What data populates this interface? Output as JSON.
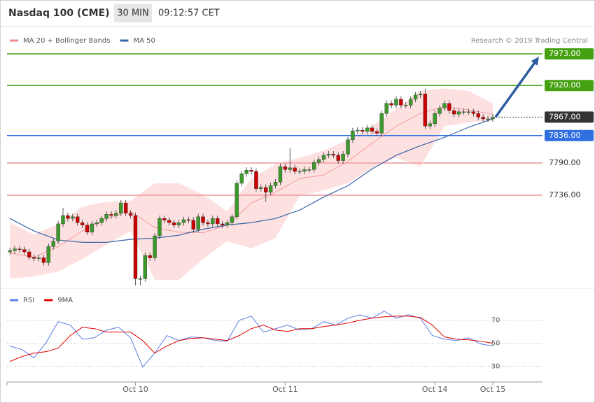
{
  "header": {
    "title": "Nasdaq 100 (CME)",
    "interval": "30 MIN",
    "time": "09:12:57 CET",
    "attribution": "Research © 2019 Trading Central"
  },
  "chart_data": [
    {
      "type": "candlestick",
      "xlim": [
        -0.6,
        110.3
      ],
      "ylim": [
        7580,
        7993
      ],
      "up_color": "#3c9a2a",
      "down_color": "#cc0000",
      "open": [
        7641,
        7643,
        7646,
        7645,
        7641,
        7632,
        7630,
        7631,
        7623,
        7650,
        7659,
        7688,
        7702,
        7697,
        7700,
        7690,
        7686,
        7674,
        7688,
        7690,
        7697,
        7704,
        7702,
        7706,
        7723,
        7706,
        7702,
        7596,
        7596,
        7635,
        7631,
        7668,
        7697,
        7694,
        7690,
        7686,
        7690,
        7695,
        7694,
        7679,
        7700,
        7690,
        7688,
        7697,
        7688,
        7686,
        7690,
        7700,
        7756,
        7772,
        7778,
        7776,
        7747,
        7749,
        7741,
        7752,
        7758,
        7784,
        7779,
        7782,
        7776,
        7776,
        7779,
        7779,
        7791,
        7796,
        7803,
        7805,
        7803,
        7794,
        7805,
        7829,
        7844,
        7845,
        7843,
        7849,
        7843,
        7840,
        7873,
        7890,
        7887,
        7897,
        7887,
        7887,
        7897,
        7904,
        7906,
        7852,
        7856,
        7873,
        7882,
        7890,
        7878,
        7872,
        7876,
        7876,
        7876,
        7873,
        7867,
        7864,
        7864
      ],
      "high": [
        7648,
        7651,
        7651,
        7650,
        7646,
        7637,
        7636,
        7636,
        7655,
        7664,
        7693,
        7715,
        7707,
        7705,
        7705,
        7695,
        7691,
        7693,
        7695,
        7702,
        7709,
        7709,
        7711,
        7728,
        7728,
        7711,
        7707,
        7601,
        7640,
        7640,
        7673,
        7702,
        7702,
        7699,
        7695,
        7695,
        7700,
        7700,
        7699,
        7705,
        7705,
        7695,
        7702,
        7702,
        7693,
        7695,
        7705,
        7761,
        7777,
        7783,
        7783,
        7781,
        7754,
        7754,
        7757,
        7763,
        7789,
        7789,
        7815,
        7787,
        7781,
        7784,
        7784,
        7796,
        7801,
        7808,
        7810,
        7810,
        7808,
        7810,
        7834,
        7849,
        7850,
        7850,
        7854,
        7854,
        7848,
        7878,
        7895,
        7895,
        7902,
        7902,
        7892,
        7902,
        7909,
        7911,
        7915,
        7861,
        7878,
        7887,
        7895,
        7895,
        7883,
        7881,
        7881,
        7881,
        7881,
        7878,
        7872,
        7869,
        7872
      ],
      "low": [
        7636,
        7638,
        7640,
        7636,
        7627,
        7625,
        7625,
        7618,
        7618,
        7645,
        7654,
        7683,
        7692,
        7692,
        7685,
        7681,
        7669,
        7669,
        7683,
        7685,
        7692,
        7697,
        7697,
        7701,
        7701,
        7697,
        7585,
        7585,
        7591,
        7626,
        7626,
        7663,
        7689,
        7685,
        7681,
        7681,
        7685,
        7689,
        7674,
        7674,
        7685,
        7683,
        7683,
        7683,
        7681,
        7681,
        7685,
        7695,
        7751,
        7767,
        7771,
        7742,
        7742,
        7725,
        7736,
        7747,
        7753,
        7774,
        7774,
        7771,
        7771,
        7771,
        7774,
        7774,
        7786,
        7791,
        7798,
        7798,
        7789,
        7789,
        7800,
        7824,
        7839,
        7838,
        7838,
        7838,
        7835,
        7835,
        7868,
        7882,
        7882,
        7882,
        7882,
        7882,
        7892,
        7899,
        7847,
        7847,
        7851,
        7868,
        7877,
        7873,
        7867,
        7867,
        7871,
        7871,
        7868,
        7862,
        7859,
        7859,
        7859
      ],
      "close": [
        7643,
        7646,
        7645,
        7641,
        7632,
        7630,
        7631,
        7623,
        7650,
        7659,
        7688,
        7702,
        7697,
        7700,
        7690,
        7686,
        7674,
        7688,
        7690,
        7697,
        7704,
        7702,
        7706,
        7723,
        7706,
        7702,
        7596,
        7596,
        7635,
        7631,
        7668,
        7697,
        7694,
        7690,
        7686,
        7690,
        7695,
        7694,
        7679,
        7700,
        7690,
        7688,
        7697,
        7688,
        7686,
        7690,
        7700,
        7756,
        7772,
        7778,
        7776,
        7747,
        7749,
        7741,
        7752,
        7758,
        7784,
        7779,
        7782,
        7776,
        7776,
        7779,
        7779,
        7791,
        7796,
        7803,
        7805,
        7803,
        7794,
        7805,
        7829,
        7844,
        7845,
        7843,
        7849,
        7843,
        7840,
        7873,
        7890,
        7887,
        7897,
        7887,
        7887,
        7897,
        7904,
        7906,
        7852,
        7856,
        7873,
        7882,
        7890,
        7878,
        7872,
        7876,
        7876,
        7876,
        7873,
        7867,
        7864,
        7864,
        7867
      ],
      "series": [
        {
          "name": "MA 20 + Bollinger Bands",
          "color": "#f08a8a",
          "band_color": "#fde1e1",
          "x": [
            0,
            5,
            10,
            15,
            20,
            25,
            30,
            35,
            40,
            45,
            50,
            55,
            60,
            65,
            70,
            75,
            80,
            85,
            90,
            95,
            100
          ],
          "values": [
            7639,
            7632,
            7650,
            7676,
            7697,
            7709,
            7682,
            7674,
            7673,
            7686,
            7723,
            7741,
            7764,
            7770,
            7793,
            7823,
            7852,
            7873,
            7885,
            7879,
            7872
          ],
          "upper": [
            7690,
            7670,
            7688,
            7717,
            7725,
            7727,
            7756,
            7756,
            7737,
            7709,
            7764,
            7788,
            7799,
            7811,
            7829,
            7852,
            7881,
            7911,
            7915,
            7911,
            7890
          ],
          "lower": [
            7596,
            7600,
            7608,
            7629,
            7653,
            7676,
            7594,
            7594,
            7629,
            7659,
            7647,
            7664,
            7735,
            7744,
            7756,
            7782,
            7799,
            7784,
            7852,
            7858,
            7862
          ]
        },
        {
          "name": "MA 50",
          "color": "#3a64a8",
          "x": [
            0,
            5,
            10,
            15,
            20,
            25,
            30,
            35,
            40,
            45,
            50,
            55,
            60,
            65,
            70,
            75,
            80,
            85,
            90,
            95,
            100
          ],
          "values": [
            7697,
            7676,
            7661,
            7657,
            7657,
            7662,
            7664,
            7669,
            7679,
            7686,
            7690,
            7697,
            7711,
            7733,
            7752,
            7780,
            7803,
            7819,
            7833,
            7850,
            7864
          ]
        }
      ],
      "levels": [
        {
          "value": 7973,
          "label": "7973.00",
          "color": "#46a112",
          "label_fill": "#46a112",
          "dash": false
        },
        {
          "value": 7920,
          "label": "7920.00",
          "color": "#46a112",
          "label_fill": "#46a112",
          "dash": false
        },
        {
          "value": 7867,
          "label": "7867.00",
          "color": "#333333",
          "label_fill": "#333333",
          "dash": true
        },
        {
          "value": 7836,
          "label": "7836.00",
          "color": "#2f6fe0",
          "label_fill": "#2f6fe0",
          "dash": false
        },
        {
          "value": 7790,
          "label": "7790.00",
          "color": "#ee9a9a",
          "label_fill": null,
          "dash": false
        },
        {
          "value": 7736,
          "label": "7736.00",
          "color": "#ee9a9a",
          "label_fill": null,
          "dash": false
        }
      ]
    },
    {
      "type": "line",
      "xlim": [
        -0.6,
        110.3
      ],
      "ylim": [
        20,
        82
      ],
      "yticks": [
        30,
        50,
        70
      ],
      "grid": true,
      "xticks": [
        {
          "value": 26,
          "label": "Oct 10"
        },
        {
          "value": 57,
          "label": "Oct 11"
        },
        {
          "value": 88,
          "label": "Oct 14"
        },
        {
          "value": 100,
          "label": "Oct 15"
        }
      ],
      "x": [
        0,
        2.5,
        5,
        7.5,
        10,
        12.5,
        15,
        17.5,
        20,
        22.5,
        25,
        27.5,
        30,
        32.5,
        35,
        37.5,
        40,
        42.5,
        45,
        47.5,
        50,
        52.5,
        55,
        57.5,
        60,
        62.5,
        65,
        67.5,
        70,
        72.5,
        75,
        77.5,
        80,
        82.5,
        85,
        87.5,
        90,
        92.5,
        95,
        97.5,
        100
      ],
      "series": [
        {
          "name": "RSI",
          "color": "#5b7ee6",
          "values": [
            47.6,
            44.5,
            37.3,
            50.6,
            68.8,
            65.8,
            53.6,
            54.8,
            61.5,
            63.9,
            54.8,
            29.4,
            41.5,
            56.7,
            52.4,
            55.5,
            54.8,
            52.4,
            51.8,
            70,
            73.6,
            59.7,
            62.7,
            65.8,
            61.5,
            62.7,
            68.8,
            65.8,
            71.8,
            74.8,
            71.8,
            77.9,
            71.8,
            74.8,
            71.8,
            56.7,
            53.6,
            52.4,
            54.8,
            49.4,
            47.6
          ]
        },
        {
          "name": "9MA",
          "color": "#e00000",
          "values": [
            34.2,
            38.5,
            41.5,
            42.7,
            45.8,
            56.7,
            63.9,
            62.7,
            59.7,
            59.7,
            59.7,
            52.4,
            41.5,
            47.6,
            52.4,
            54.2,
            54.8,
            53.6,
            52.4,
            56.7,
            62.7,
            65.8,
            61.5,
            60.3,
            62.7,
            62.7,
            64.5,
            65.8,
            67.6,
            70,
            71.8,
            73,
            73.6,
            73.6,
            72.4,
            65.8,
            55.5,
            53.6,
            53,
            51.8,
            50
          ]
        }
      ]
    }
  ]
}
